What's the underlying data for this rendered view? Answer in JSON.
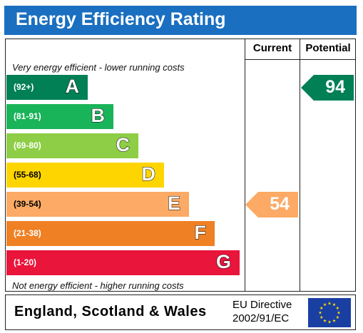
{
  "header": {
    "title": "Energy Efficiency Rating"
  },
  "columns": {
    "current": "Current",
    "potential": "Potential"
  },
  "captions": {
    "top": "Very energy efficient - lower running costs",
    "bottom": "Not energy efficient - higher running costs"
  },
  "chart_data": {
    "type": "bar",
    "categories": [
      "A",
      "B",
      "C",
      "D",
      "E",
      "F",
      "G"
    ],
    "ranges": [
      "(92+)",
      "(81-91)",
      "(69-80)",
      "(55-68)",
      "(39-54)",
      "(21-38)",
      "(1-20)"
    ],
    "colors": [
      "#008054",
      "#19b459",
      "#8dce46",
      "#ffd500",
      "#fcaa65",
      "#ef8023",
      "#e9153b"
    ],
    "current": {
      "value": 54,
      "band": "E",
      "color": "#fcaa65"
    },
    "potential": {
      "value": 94,
      "band": "A",
      "color": "#008054"
    }
  },
  "footer": {
    "region": "England, Scotland & Wales",
    "directive_line1": "EU Directive",
    "directive_line2": "2002/91/EC"
  }
}
